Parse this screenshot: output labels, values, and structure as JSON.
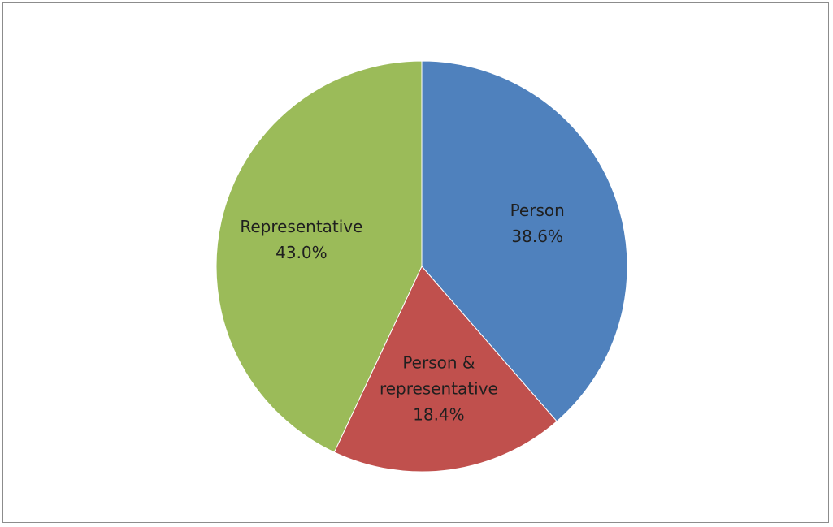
{
  "chart_data": {
    "type": "pie",
    "title": "",
    "legend": "none",
    "slices": [
      {
        "label": "Person",
        "label_lines": [
          "Person"
        ],
        "value": 38.6,
        "value_label": "38.6%",
        "color": "#4f81bd"
      },
      {
        "label": "Person & representative",
        "label_lines": [
          "Person &",
          "representative"
        ],
        "value": 18.4,
        "value_label": "18.4%",
        "color": "#c0504d"
      },
      {
        "label": "Representative",
        "label_lines": [
          "Representative"
        ],
        "value": 43.0,
        "value_label": "43.0%",
        "color": "#9bbb59"
      }
    ]
  }
}
